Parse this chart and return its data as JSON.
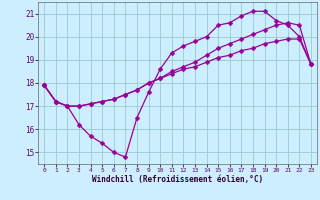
{
  "title": "",
  "xlabel": "Windchill (Refroidissement éolien,°C)",
  "background_color": "#cceeff",
  "line_color": "#990099",
  "grid_color": "#99cccc",
  "ylim": [
    14.5,
    21.5
  ],
  "xlim": [
    -0.5,
    23.5
  ],
  "yticks": [
    15,
    16,
    17,
    18,
    19,
    20,
    21
  ],
  "xticks": [
    0,
    1,
    2,
    3,
    4,
    5,
    6,
    7,
    8,
    9,
    10,
    11,
    12,
    13,
    14,
    15,
    16,
    17,
    18,
    19,
    20,
    21,
    22,
    23
  ],
  "series": [
    {
      "x": [
        0,
        1,
        2,
        3,
        4,
        5,
        6,
        7,
        8,
        9,
        10,
        11,
        12,
        13,
        14,
        15,
        16,
        17,
        18,
        19,
        20,
        21,
        22,
        23
      ],
      "y": [
        17.9,
        17.2,
        17.0,
        16.2,
        15.7,
        15.4,
        15.0,
        14.8,
        16.5,
        17.6,
        18.6,
        19.3,
        19.6,
        19.8,
        20.0,
        20.5,
        20.6,
        20.9,
        21.1,
        21.1,
        20.7,
        20.5,
        20.0,
        18.8
      ]
    },
    {
      "x": [
        0,
        1,
        2,
        3,
        4,
        5,
        6,
        7,
        8,
        9,
        10,
        11,
        12,
        13,
        14,
        15,
        16,
        17,
        18,
        19,
        20,
        21,
        22,
        23
      ],
      "y": [
        17.9,
        17.2,
        17.0,
        17.0,
        17.1,
        17.2,
        17.3,
        17.5,
        17.7,
        18.0,
        18.2,
        18.5,
        18.7,
        18.9,
        19.2,
        19.5,
        19.7,
        19.9,
        20.1,
        20.3,
        20.5,
        20.6,
        20.5,
        18.8
      ]
    },
    {
      "x": [
        0,
        1,
        2,
        3,
        4,
        5,
        6,
        7,
        8,
        9,
        10,
        11,
        12,
        13,
        14,
        15,
        16,
        17,
        18,
        19,
        20,
        21,
        22,
        23
      ],
      "y": [
        17.9,
        17.2,
        17.0,
        17.0,
        17.1,
        17.2,
        17.3,
        17.5,
        17.7,
        18.0,
        18.2,
        18.4,
        18.6,
        18.7,
        18.9,
        19.1,
        19.2,
        19.4,
        19.5,
        19.7,
        19.8,
        19.9,
        19.9,
        18.8
      ]
    }
  ],
  "marker": "D",
  "markersize": 2.5,
  "linewidth": 0.9
}
